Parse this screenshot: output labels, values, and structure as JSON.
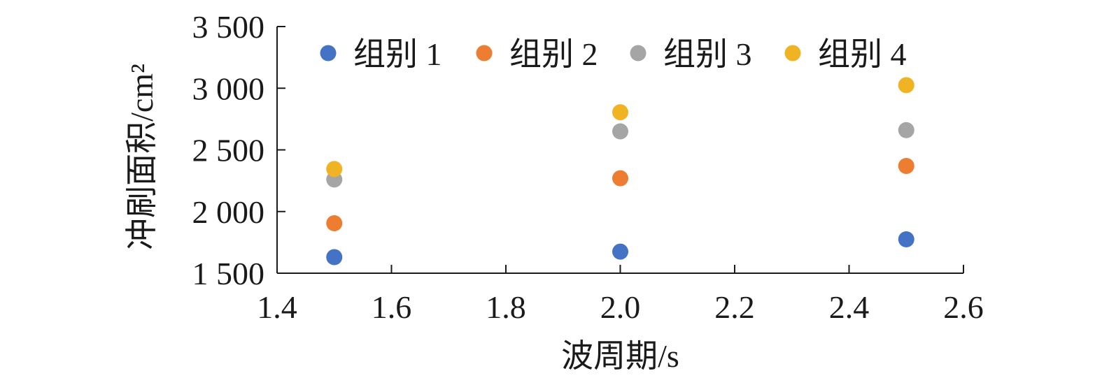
{
  "chart_data": {
    "type": "scatter",
    "xlabel": "波周期/s",
    "ylabel": "冲刷面积/cm²",
    "xlim": [
      1.4,
      2.6
    ],
    "ylim": [
      1500,
      3500
    ],
    "x_ticks": [
      1.4,
      1.6,
      1.8,
      2.0,
      2.2,
      2.4,
      2.6
    ],
    "x_tick_labels": [
      "1.4",
      "1.6",
      "1.8",
      "2.0",
      "2.2",
      "2.4",
      "2.6"
    ],
    "y_ticks": [
      1500,
      2000,
      2500,
      3000,
      3500
    ],
    "y_tick_labels": [
      "1 500",
      "2 000",
      "2 500",
      "3 000",
      "3 500"
    ],
    "grid": false,
    "legend_position": "top",
    "series": [
      {
        "name": "组别 1",
        "color": "#4472C4",
        "points": [
          [
            1.5,
            1630
          ],
          [
            2.0,
            1675
          ],
          [
            2.5,
            1775
          ]
        ]
      },
      {
        "name": "组别 2",
        "color": "#ED7D31",
        "points": [
          [
            1.5,
            1905
          ],
          [
            2.0,
            2270
          ],
          [
            2.5,
            2370
          ]
        ]
      },
      {
        "name": "组别 3",
        "color": "#A5A5A5",
        "points": [
          [
            1.5,
            2260
          ],
          [
            2.0,
            2650
          ],
          [
            2.5,
            2660
          ]
        ]
      },
      {
        "name": "组别 4",
        "color": "#F0B323",
        "points": [
          [
            1.5,
            2345
          ],
          [
            2.0,
            2805
          ],
          [
            2.5,
            3025
          ]
        ]
      }
    ]
  }
}
